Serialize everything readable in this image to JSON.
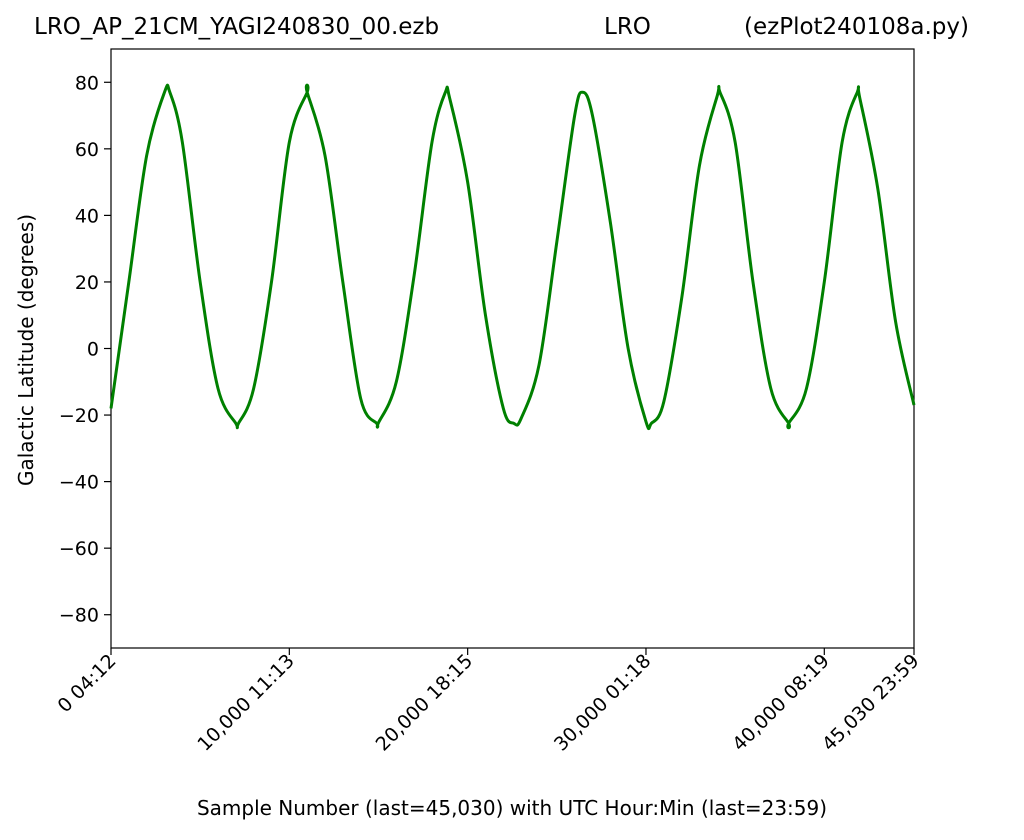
{
  "chart_data": {
    "type": "line",
    "title": {
      "left": "LRO_AP_21CM_YAGI240830_00.ezb",
      "center": "LRO",
      "right": "(ezPlot240108a.py)"
    },
    "xlabel": "Sample Number (last=45,030) with UTC Hour:Min (last=23:59)",
    "ylabel": "Galactic Latitude (degrees)",
    "xlim": [
      0,
      45030
    ],
    "ylim": [
      -90,
      90
    ],
    "grid": false,
    "legend": "none",
    "line_color": "#008000",
    "x_ticks": [
      {
        "value": 0,
        "label": "0  04:12"
      },
      {
        "value": 10000,
        "label": "10,000  11:13"
      },
      {
        "value": 20000,
        "label": "20,000  18:15"
      },
      {
        "value": 30000,
        "label": "30,000  01:18"
      },
      {
        "value": 40000,
        "label": "40,000  08:19"
      },
      {
        "value": 45030,
        "label": "45,030  23:59"
      }
    ],
    "y_ticks": [
      {
        "value": 80,
        "label": "80"
      },
      {
        "value": 60,
        "label": "60"
      },
      {
        "value": 40,
        "label": "40"
      },
      {
        "value": 20,
        "label": "20"
      },
      {
        "value": 0,
        "label": "0"
      },
      {
        "value": -20,
        "label": "−20"
      },
      {
        "value": -40,
        "label": "−40"
      },
      {
        "value": -60,
        "label": "−60"
      },
      {
        "value": -80,
        "label": "−80"
      }
    ],
    "series": [
      {
        "x": [
          0,
          1000,
          2000,
          3000,
          3300,
          4000,
          5000,
          6000,
          7000,
          7150,
          8000,
          9000,
          10000,
          11000,
          11000,
          12000,
          13000,
          14000,
          14900,
          15000,
          16000,
          17000,
          18000,
          18750,
          19000,
          20000,
          21000,
          22000,
          22600,
          23000,
          24000,
          25000,
          26000,
          26450,
          27000,
          28000,
          29000,
          30000,
          30300,
          31000,
          32000,
          33000,
          34000,
          34150,
          35000,
          36000,
          37000,
          38000,
          38000,
          39000,
          40000,
          41000,
          41850,
          42000,
          43000,
          44000,
          45030
        ],
        "y": [
          -18,
          20,
          58,
          77,
          77,
          62,
          20,
          -12,
          -22.5,
          -22.5,
          -12,
          20,
          62,
          77,
          77,
          58,
          20,
          -15,
          -22.5,
          -22.3,
          -10,
          22,
          62,
          77,
          75,
          50,
          10,
          -18,
          -22.5,
          -21,
          -5,
          32,
          70,
          77,
          70,
          38,
          0,
          -22,
          -22.5,
          -16,
          15,
          55,
          76,
          77,
          62,
          20,
          -12,
          -22.5,
          -22.5,
          -12,
          20,
          62,
          77,
          75,
          48,
          8,
          -17
        ]
      }
    ]
  }
}
